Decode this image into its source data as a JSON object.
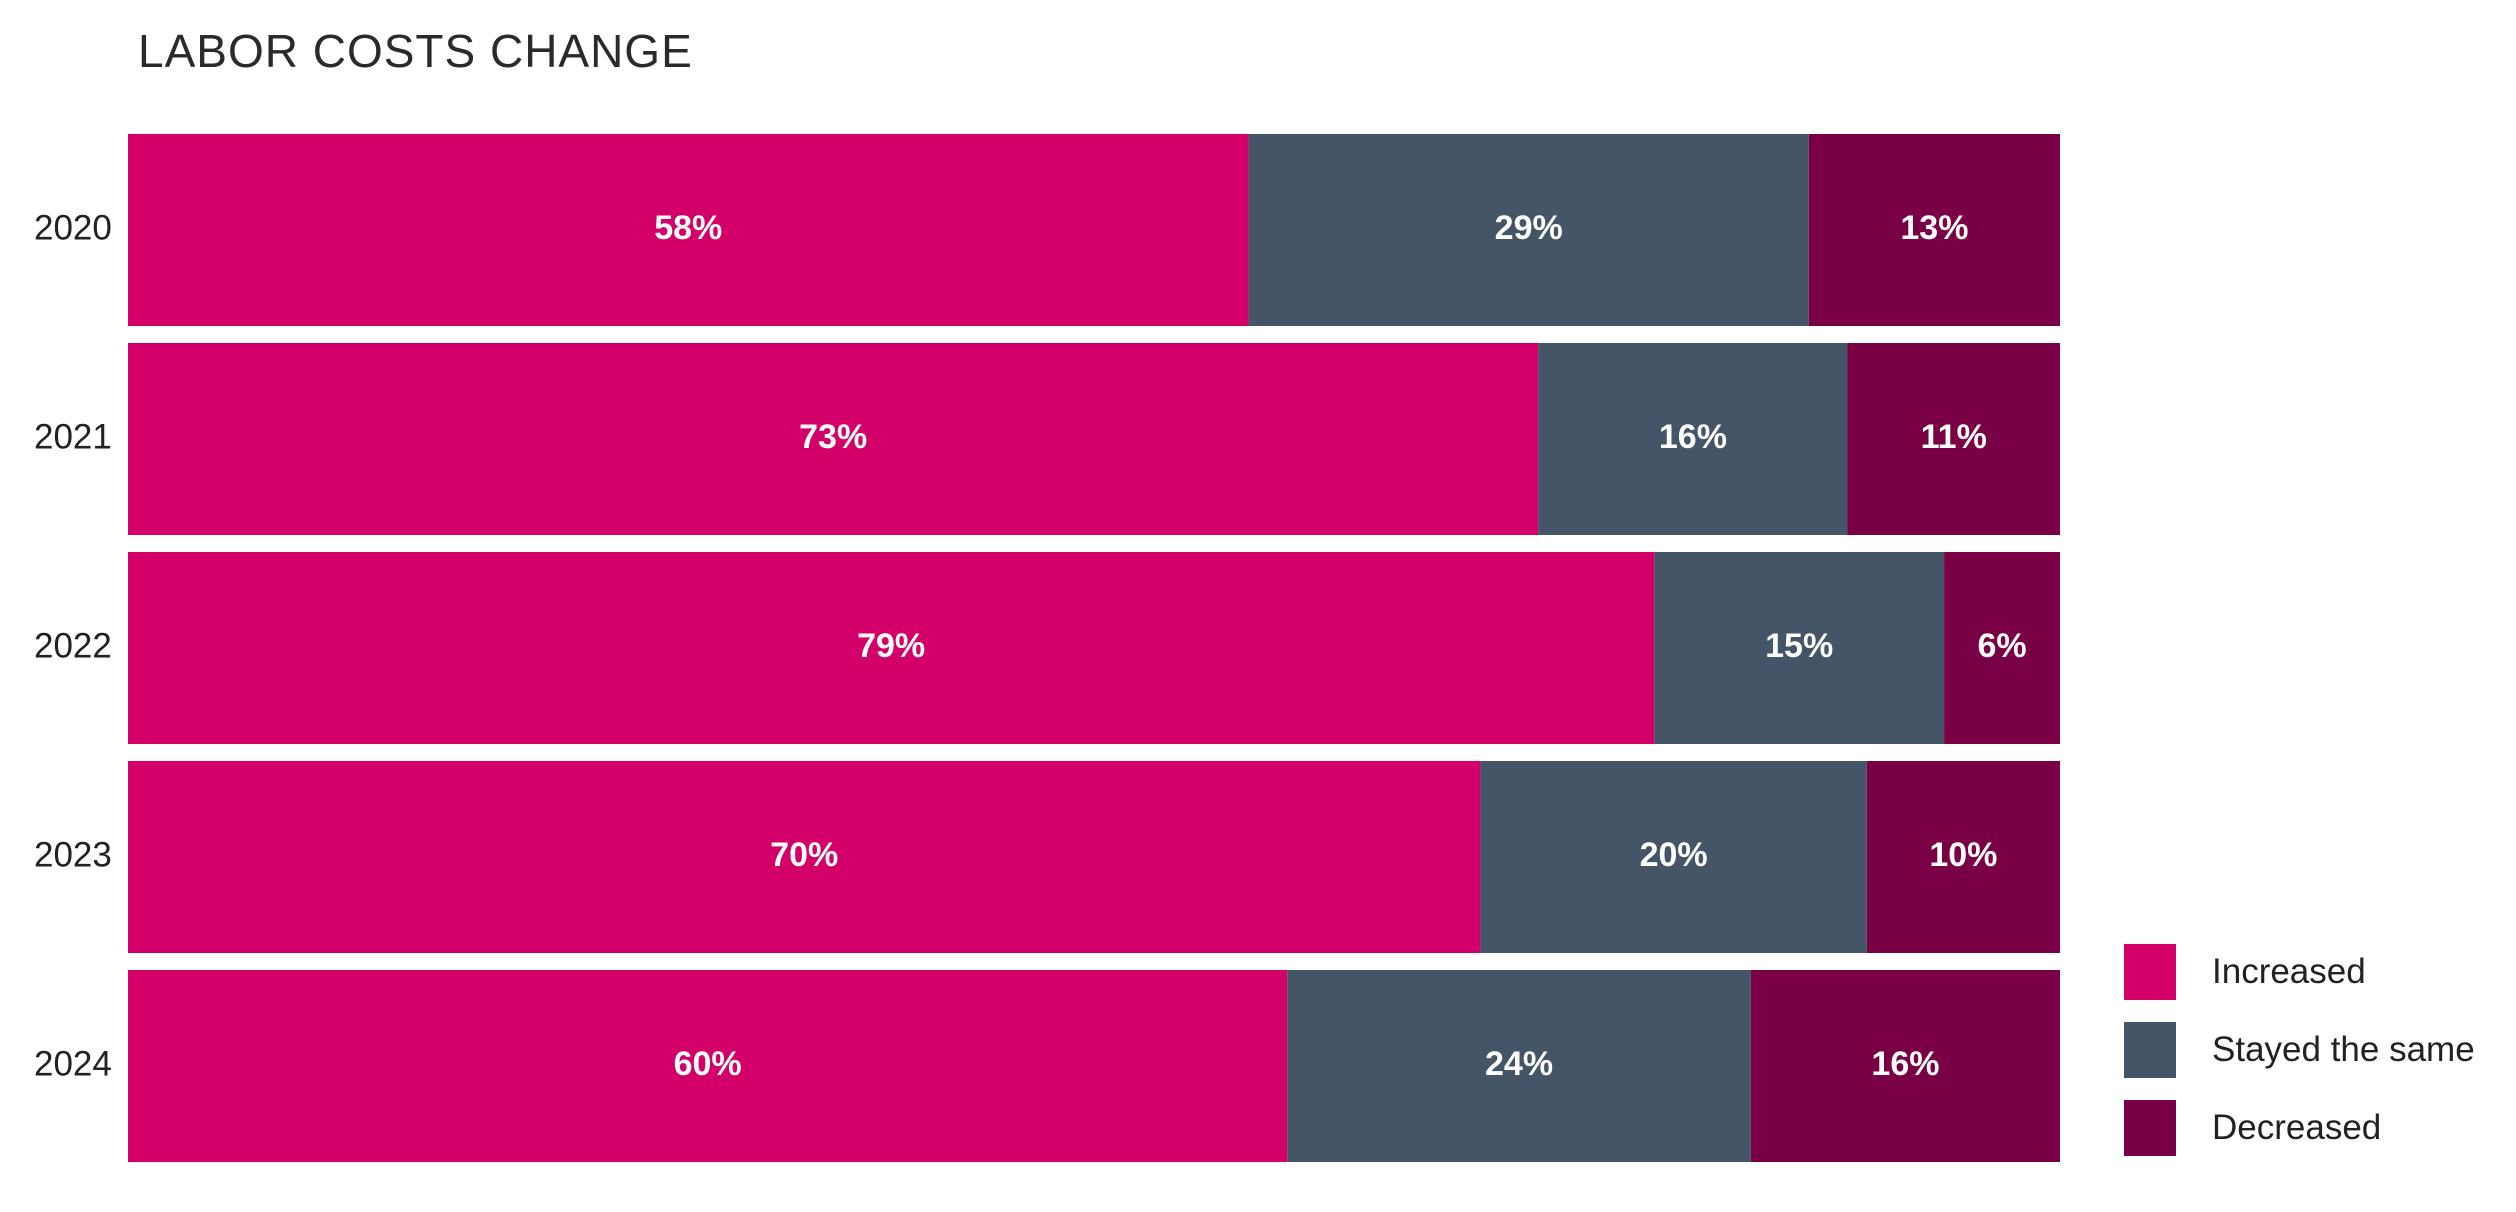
{
  "chart_data": {
    "type": "bar",
    "orientation": "horizontal",
    "stacked": true,
    "title": "LABOR COSTS CHANGE",
    "xlabel": "",
    "ylabel": "",
    "categories": [
      "2020",
      "2021",
      "2022",
      "2023",
      "2024"
    ],
    "series": [
      {
        "name": "Increased",
        "values": [
          58,
          73,
          79,
          70,
          60
        ],
        "color": "#d4006a",
        "labels": [
          "58%",
          "73%",
          "79%",
          "70%",
          "60%"
        ]
      },
      {
        "name": "Stayed the same",
        "values": [
          29,
          16,
          15,
          20,
          24
        ],
        "color": "#445567",
        "labels": [
          "29%",
          "16%",
          "15%",
          "20%",
          "24%"
        ]
      },
      {
        "name": "Decreased",
        "values": [
          13,
          11,
          6,
          10,
          16
        ],
        "color": "#7a0045",
        "labels": [
          "13%",
          "11%",
          "6%",
          "10%",
          "16%"
        ]
      }
    ],
    "xlim": [
      0,
      100
    ],
    "grid": false,
    "legend_position": "bottom-right"
  }
}
